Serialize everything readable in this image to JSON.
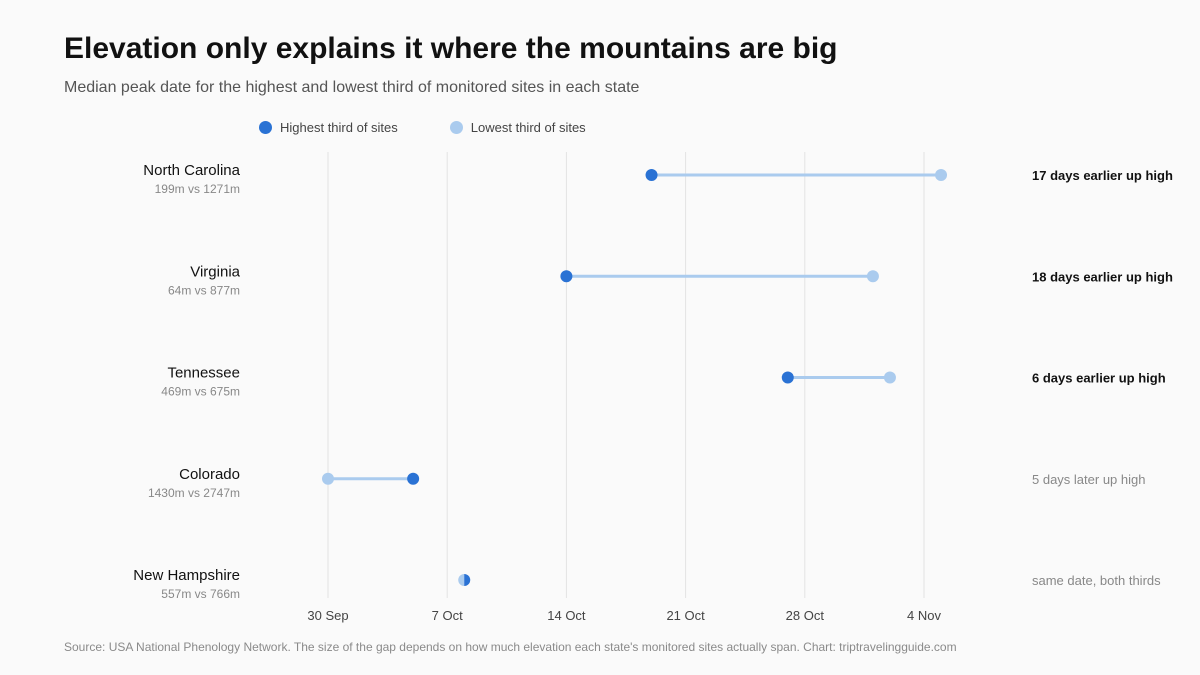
{
  "title": "Elevation only explains it where the mountains are big",
  "subtitle": "Median peak date for the highest and lowest third of monitored sites in each state",
  "legend": {
    "high": "Highest third of sites",
    "low": "Lowest third of sites"
  },
  "source": "Source: USA National Phenology Network. The size of the gap depends on how much elevation each state's monitored sites actually span. Chart: triptravelingguide.com",
  "colors": {
    "high": "#2a72d4",
    "low": "#aacbee",
    "grid": "#e3e3e3"
  },
  "chart_data": {
    "type": "dumbbell",
    "title": "Elevation only explains it where the mountains are big",
    "subtitle": "Median peak date for the highest and lowest third of monitored sites in each state",
    "x_axis": {
      "type": "date",
      "ticks": [
        "30 Sep",
        "7 Oct",
        "14 Oct",
        "21 Oct",
        "28 Oct",
        "4 Nov"
      ],
      "tick_dates": [
        "2024-09-30",
        "2024-10-07",
        "2024-10-14",
        "2024-10-21",
        "2024-10-28",
        "2024-11-04"
      ],
      "range": [
        "2024-09-30",
        "2024-11-04"
      ]
    },
    "grid": true,
    "legend_position": "top",
    "series": [
      {
        "name": "Highest third of sites",
        "key": "high"
      },
      {
        "name": "Lowest third of sites",
        "key": "low"
      }
    ],
    "rows": [
      {
        "state": "North Carolina",
        "elevation": "199m vs 1271m",
        "high": "2024-10-19",
        "low": "2024-11-05",
        "annotation": "17 days earlier up high",
        "emphasis": true
      },
      {
        "state": "Virginia",
        "elevation": "64m vs 877m",
        "high": "2024-10-14",
        "low": "2024-11-01",
        "annotation": "18 days earlier up high",
        "emphasis": true
      },
      {
        "state": "Tennessee",
        "elevation": "469m vs 675m",
        "high": "2024-10-27",
        "low": "2024-11-02",
        "annotation": "6 days earlier up high",
        "emphasis": true
      },
      {
        "state": "Colorado",
        "elevation": "1430m vs 2747m",
        "high": "2024-10-05",
        "low": "2024-09-30",
        "annotation": "5 days later up high",
        "emphasis": false
      },
      {
        "state": "New Hampshire",
        "elevation": "557m vs 766m",
        "high": "2024-10-08",
        "low": "2024-10-08",
        "annotation": "same date, both thirds",
        "emphasis": false
      }
    ]
  }
}
